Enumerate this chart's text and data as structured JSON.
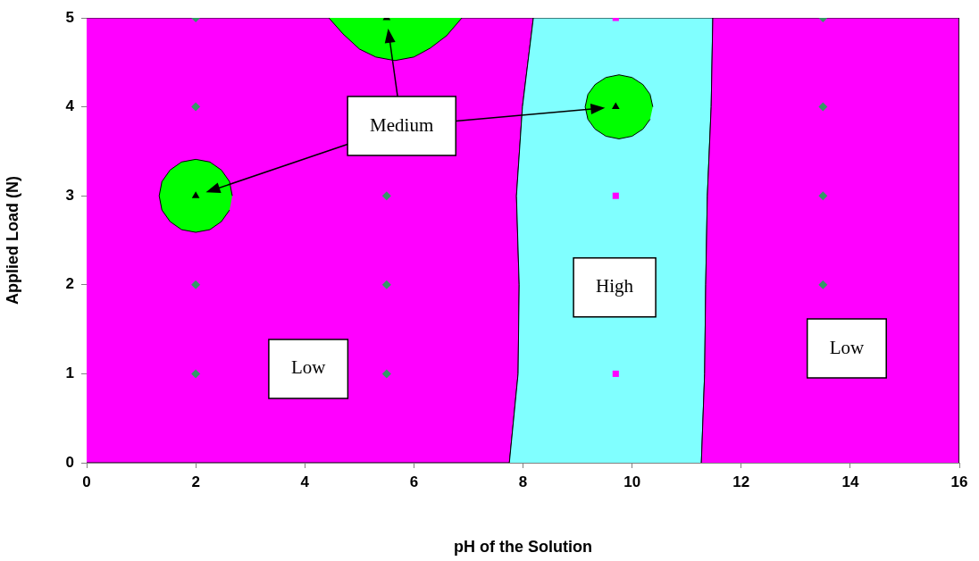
{
  "chart_data": {
    "type": "scatter",
    "xlabel": "pH of the Solution",
    "ylabel": "Applied Load (N)",
    "xlim": [
      0,
      16
    ],
    "xticks": [
      0,
      2,
      4,
      6,
      8,
      10,
      12,
      14,
      16
    ],
    "ylim": [
      0,
      5
    ],
    "yticks": [
      0,
      1,
      2,
      3,
      4,
      5
    ],
    "series": [
      {
        "type": "area",
        "color": "#ff00ff",
        "x": [
          0,
          7.75,
          7.91,
          7.93,
          7.88,
          7.99,
          8.19,
          0
        ],
        "values": [
          0,
          0,
          1,
          2,
          3,
          4,
          5,
          5
        ]
      },
      {
        "type": "area",
        "color": "#80ffff",
        "x": [
          7.75,
          7.91,
          7.93,
          7.88,
          7.99,
          8.19,
          11.48,
          11.45,
          11.38,
          11.35,
          11.33,
          11.27
        ],
        "values": [
          0,
          1,
          2,
          3,
          4,
          5,
          5,
          4,
          3,
          2,
          1,
          0
        ]
      },
      {
        "type": "area",
        "color": "#ff00ff",
        "x": [
          11.27,
          11.33,
          11.35,
          11.38,
          11.45,
          11.48,
          16,
          16
        ],
        "values": [
          0,
          1,
          2,
          3,
          4,
          5,
          5,
          0
        ]
      },
      {
        "type": "area",
        "color": "#00ff00",
        "x": [
          4.44,
          4.7,
          5.0,
          5.3,
          5.65,
          6.0,
          6.3,
          6.6,
          6.88
        ],
        "values": [
          5,
          4.82,
          4.65,
          4.56,
          4.52,
          4.56,
          4.66,
          4.8,
          5
        ]
      },
      {
        "type": "area",
        "color": "#00ff00",
        "x": [
          2.67,
          2.62,
          2.47,
          2.26,
          2.0,
          1.74,
          1.53,
          1.38,
          1.33,
          1.38,
          1.53,
          1.74,
          2.0,
          2.26,
          2.47,
          2.62
        ],
        "values": [
          3.0,
          3.16,
          3.29,
          3.38,
          3.41,
          3.38,
          3.29,
          3.16,
          3.0,
          2.84,
          2.71,
          2.62,
          2.59,
          2.62,
          2.71,
          2.84
        ]
      },
      {
        "type": "area",
        "color": "#00ff00",
        "x": [
          10.38,
          10.33,
          10.2,
          10.0,
          9.76,
          9.52,
          9.32,
          9.19,
          9.14,
          9.19,
          9.32,
          9.52,
          9.76,
          10.0,
          10.2,
          10.33
        ],
        "values": [
          4.0,
          4.14,
          4.25,
          4.33,
          4.36,
          4.33,
          4.25,
          4.14,
          4.0,
          3.86,
          3.75,
          3.67,
          3.64,
          3.67,
          3.75,
          3.86
        ]
      },
      {
        "type": "scatter",
        "marker": "diamond",
        "color": "#339966",
        "x": [
          2,
          2,
          2,
          2,
          5.5,
          5.5,
          5.5,
          13.5,
          13.5,
          13.5,
          13.5
        ],
        "values": [
          1,
          2,
          4,
          5,
          1,
          2,
          3,
          2,
          3,
          4,
          5
        ]
      },
      {
        "type": "scatter",
        "marker": "triangle",
        "color": "#000000",
        "x": [
          2,
          5.5,
          9.7
        ],
        "values": [
          3,
          5,
          4
        ]
      },
      {
        "type": "scatter",
        "marker": "square",
        "color": "#ff00ff",
        "x": [
          9.7,
          9.7,
          9.7
        ],
        "values": [
          1,
          3,
          5
        ]
      }
    ],
    "annotations": [
      "Medium",
      "High",
      "Low",
      "Low"
    ]
  }
}
